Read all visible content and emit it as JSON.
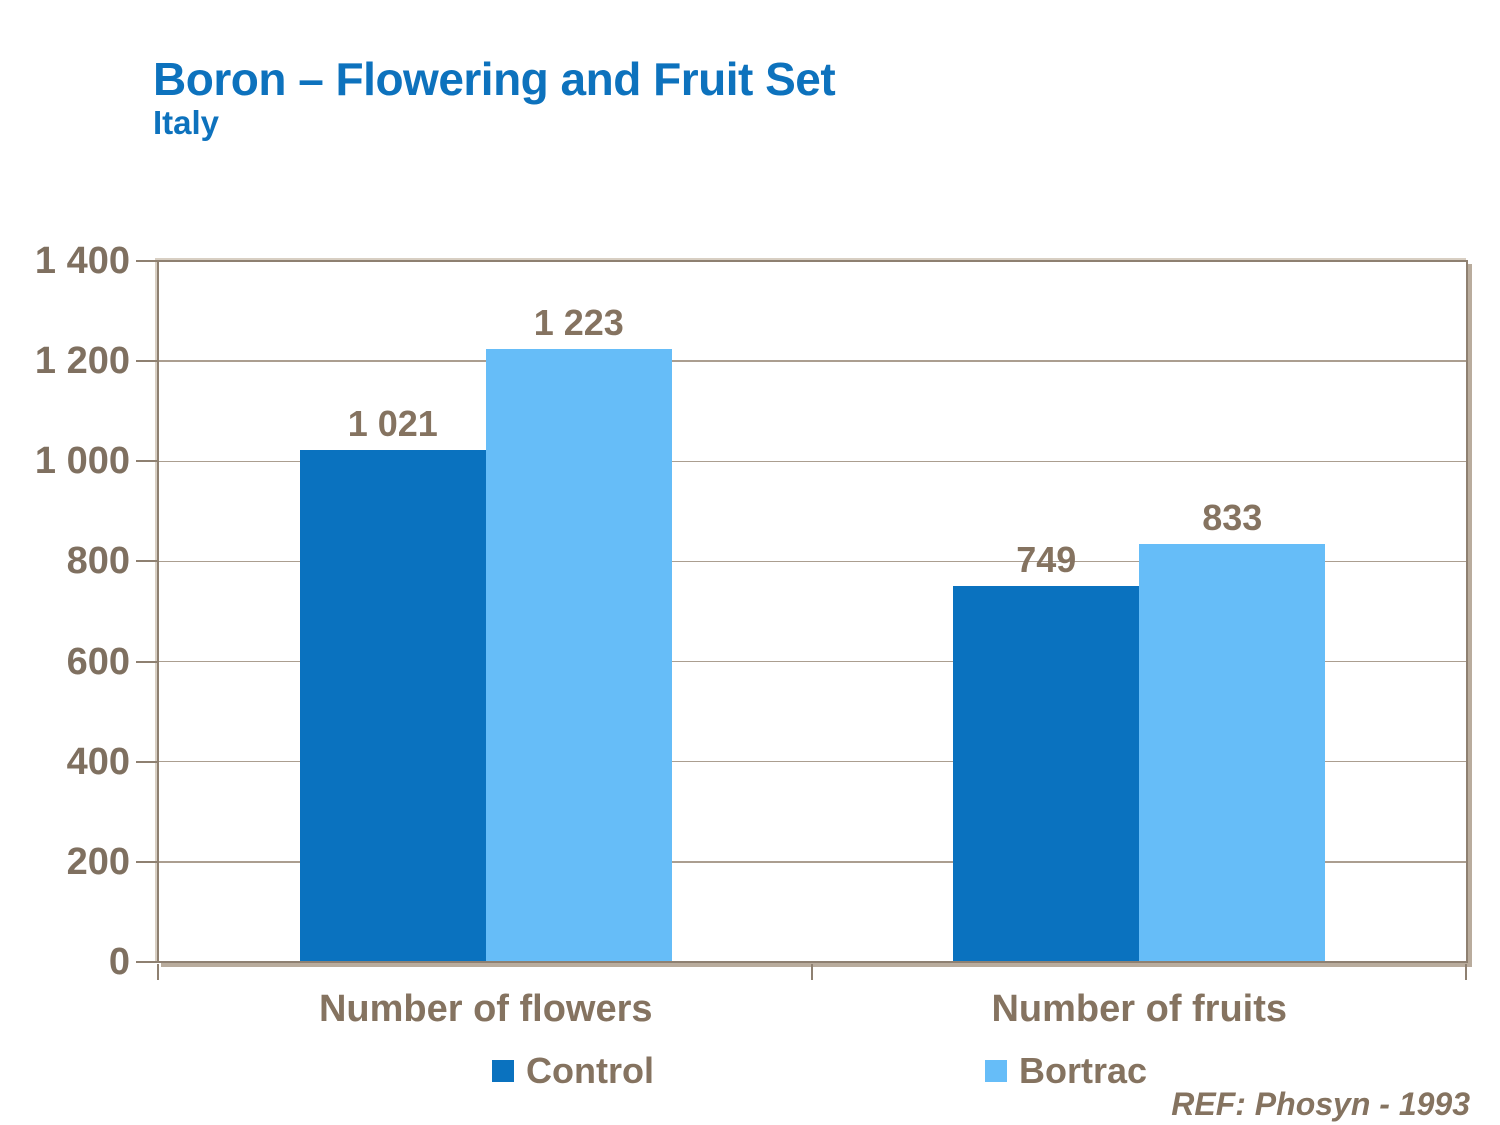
{
  "slide": {
    "title": "Boron – Flowering and Fruit Set",
    "subtitle": "Italy",
    "reference": "REF: Phosyn - 1993"
  },
  "colors": {
    "title_blue": "#0d72bd",
    "text_brown": "#857360",
    "axis_label_brown": "#7f7060",
    "control_blue": "#0a72bf",
    "bortrac_blue": "#66bdf8",
    "frame_line": "#8e8071",
    "frame_shadow": "#b9ac9d",
    "gridline": "#ab9e90",
    "background": "#ffffff"
  },
  "chart_data": {
    "type": "bar",
    "title": "Boron – Flowering and Fruit Set",
    "subtitle": "Italy",
    "categories": [
      "Number of flowers",
      "Number of fruits"
    ],
    "series": [
      {
        "name": "Control",
        "color": "#0a72bf",
        "values": [
          1021,
          749
        ],
        "value_labels": [
          "1 021",
          "749"
        ]
      },
      {
        "name": "Bortrac",
        "color": "#66bdf8",
        "values": [
          1223,
          833
        ],
        "value_labels": [
          "1 223",
          "833"
        ]
      }
    ],
    "xlabel": "",
    "ylabel": "",
    "ylim": [
      0,
      1400
    ],
    "ytick_step": 200,
    "yticks": [
      {
        "value": 1400,
        "label": "1 400"
      },
      {
        "value": 1200,
        "label": "1 200"
      },
      {
        "value": 1000,
        "label": "1 000"
      },
      {
        "value": 800,
        "label": "800"
      },
      {
        "value": 600,
        "label": "600"
      },
      {
        "value": 400,
        "label": "400"
      },
      {
        "value": 200,
        "label": "200"
      },
      {
        "value": 0,
        "label": "0"
      }
    ],
    "grid": true,
    "legend_position": "bottom",
    "annotation": "REF: Phosyn - 1993"
  }
}
